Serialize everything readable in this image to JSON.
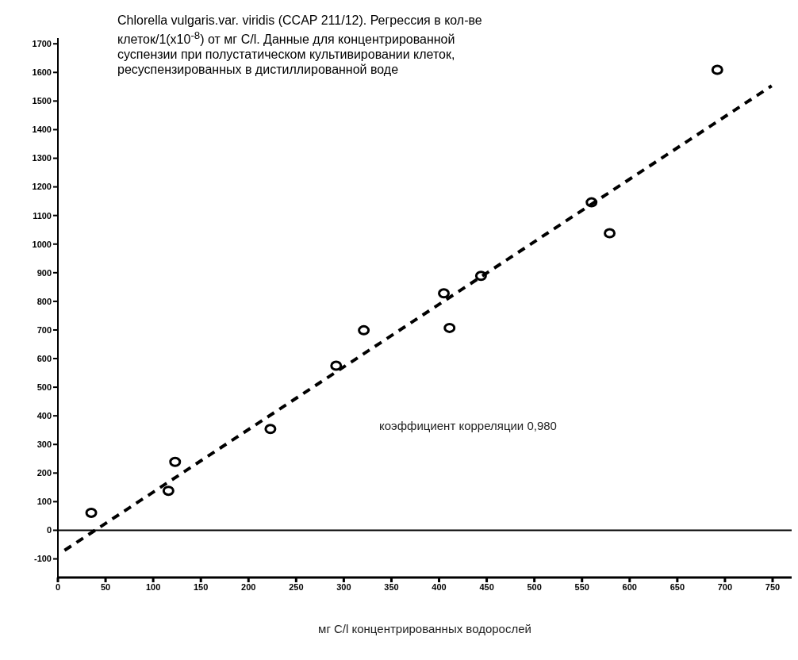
{
  "chart_data": {
    "type": "scatter",
    "title": "Chlorella vulgaris.var. viridis (CCAP 211/12). Регрессия в кол-ве клеток/1(x10$^{-8}$) от мг С/l. Данные для концентрированной суспензии при полустатическом культивировании клеток, ресуспензированных в дистиллированной воде",
    "xlabel": "мг С/l концентрированных водорослей",
    "annotations": [
      "коэффициент корреляции 0,980"
    ],
    "series": [
      {
        "color": "#000000",
        "marker": "circle",
        "x": [
          35,
          116,
          123,
          223,
          292,
          321,
          405,
          411,
          444,
          560,
          579,
          692
        ],
        "values": [
          61,
          138,
          239,
          354,
          575,
          699,
          828,
          707,
          889,
          1146,
          1038,
          1609
        ]
      },
      {
        "type": "line",
        "color": "#000000",
        "marker": "none",
        "line_style": "dashed",
        "x": [
          7,
          749
        ],
        "values": [
          -70,
          1553
        ]
      }
    ],
    "xlim": [
      0,
      770
    ],
    "xticks": [
      0,
      50,
      100,
      150,
      200,
      250,
      300,
      350,
      400,
      450,
      500,
      550,
      600,
      650,
      700,
      750
    ],
    "ylim": [
      -165,
      1720
    ],
    "yticks": [
      -100,
      0,
      100,
      200,
      300,
      400,
      500,
      600,
      700,
      800,
      900,
      1000,
      1100,
      1200,
      1300,
      1400,
      1500,
      1600,
      1700
    ],
    "ref_lines": [
      {
        "axis": "y",
        "value": 0,
        "color": "#000000",
        "line_style": "solid"
      }
    ],
    "grid": false,
    "legend": false
  }
}
